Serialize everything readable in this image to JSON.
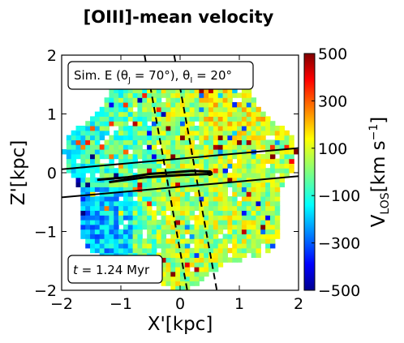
{
  "chart_data": {
    "type": "heatmap",
    "title": "[OIII]-mean velocity",
    "xlabel": "X'[kpc]",
    "ylabel": "Z'[kpc]",
    "xlim": [
      -2,
      2
    ],
    "ylim": [
      -2,
      2
    ],
    "xticks": [
      "−2",
      "−1",
      "0",
      "1",
      "2"
    ],
    "yticks": [
      "−2",
      "−1",
      "0",
      "1",
      "2"
    ],
    "colorbar": {
      "label_main": "V",
      "label_sub": "LOS",
      "label_unit": "[km s",
      "label_exp": "−1",
      "label_close": "]",
      "range": [
        -500,
        500
      ],
      "ticks": [
        "500",
        "300",
        "100",
        "−100",
        "−300",
        "−500"
      ],
      "colormap": "jet"
    },
    "annotations": {
      "sim_label": "Sim. E (θ",
      "sim_sub1": "J",
      "sim_mid": " = 70°), θ",
      "sim_sub2": "I",
      "sim_end": " = 20°",
      "time_label_t": "t",
      "time_label": " = 1.24 Myr"
    },
    "field": {
      "disk_center": [
        0,
        0
      ],
      "disk_radius_kpc": 2.0,
      "mean_velocity": 20,
      "left_bias": -150,
      "right_bias": 30
    },
    "lines": {
      "solid": [
        {
          "x": [
            -2,
            2
          ],
          "y": [
            0.06,
            0.42
          ]
        },
        {
          "x": [
            -2,
            2
          ],
          "y": [
            -0.42,
            -0.06
          ]
        }
      ],
      "dashed": [
        {
          "x": [
            -0.6,
            0.12
          ],
          "y": [
            2,
            -2
          ]
        },
        {
          "x": [
            -0.1,
            0.62
          ],
          "y": [
            2,
            -2
          ]
        }
      ],
      "jet": [
        {
          "x": [
            -1.4,
            -0.9,
            -0.5,
            -0.2,
            0.2,
            0.5
          ],
          "y": [
            -0.12,
            -0.08,
            -0.02,
            0.0,
            0.03,
            0.02
          ]
        },
        {
          "x": [
            -1.2,
            -0.6,
            0.0,
            0.55
          ],
          "y": [
            -0.16,
            -0.08,
            -0.04,
            -0.02
          ]
        }
      ]
    }
  }
}
